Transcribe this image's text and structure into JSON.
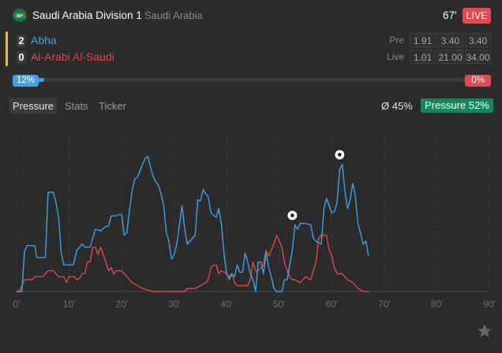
{
  "header": {
    "league": "Saudi Arabia Division 1",
    "country": "Saudi Arabia",
    "minute": "67'",
    "live_label": "LIVE"
  },
  "teams": {
    "home": {
      "name": "Abha",
      "score": "2",
      "color": "#3fa1e6"
    },
    "away": {
      "name": "Al-Arabi Al-Saudi",
      "score": "0",
      "color": "#e5484d"
    }
  },
  "odds": {
    "pre": {
      "label": "Pre",
      "values": [
        "1.91",
        "3.40",
        "3.40"
      ]
    },
    "live": {
      "label": "Live",
      "values": [
        "1.01",
        "21.00",
        "34.00"
      ]
    }
  },
  "probability": {
    "home": "12%",
    "away": "0%",
    "home_value": 0.12
  },
  "tabs": [
    "Pressure",
    "Stats",
    "Ticker"
  ],
  "summary": {
    "avg": "Ø 45%",
    "pressure": "Pressure 52%"
  },
  "chart_data": {
    "type": "line",
    "title": "Pressure",
    "x_ticks": [
      "0'",
      "10'",
      "20'",
      "30'",
      "40'",
      "50'",
      "60'",
      "70'",
      "80'",
      "90'"
    ],
    "xlim": [
      0,
      90
    ],
    "ylim": [
      0,
      100
    ],
    "series": [
      {
        "name": "Abha",
        "color": "#3fa1e6",
        "points": [
          [
            0,
            0
          ],
          [
            1,
            0
          ],
          [
            1.5,
            27
          ],
          [
            2,
            31
          ],
          [
            3.5,
            31
          ],
          [
            3.8,
            23
          ],
          [
            5.5,
            23
          ],
          [
            6,
            67
          ],
          [
            7,
            67
          ],
          [
            7.5,
            60
          ],
          [
            8,
            50
          ],
          [
            8.5,
            26
          ],
          [
            9,
            18
          ],
          [
            10,
            18
          ],
          [
            10.8,
            18
          ],
          [
            11.5,
            28
          ],
          [
            12.5,
            32
          ],
          [
            13,
            30
          ],
          [
            14,
            30
          ],
          [
            14.5,
            36
          ],
          [
            15,
            42
          ],
          [
            16,
            41
          ],
          [
            17,
            44
          ],
          [
            17.5,
            44
          ],
          [
            18,
            51
          ],
          [
            19,
            51
          ],
          [
            19.5,
            52
          ],
          [
            20,
            52
          ],
          [
            20.5,
            38
          ],
          [
            21,
            40
          ],
          [
            21.5,
            55
          ],
          [
            22,
            68
          ],
          [
            22.5,
            76
          ],
          [
            23,
            77
          ],
          [
            24,
            86
          ],
          [
            24.5,
            90
          ],
          [
            25,
            91
          ],
          [
            25.5,
            84
          ],
          [
            26,
            78
          ],
          [
            26.5,
            74
          ],
          [
            27,
            72
          ],
          [
            27.5,
            66
          ],
          [
            28,
            58
          ],
          [
            28.5,
            40
          ],
          [
            29,
            34
          ],
          [
            29.5,
            22
          ],
          [
            30,
            25
          ],
          [
            30.5,
            32
          ],
          [
            31,
            45
          ],
          [
            31.5,
            58
          ],
          [
            32,
            42
          ],
          [
            32.5,
            32
          ],
          [
            33,
            34
          ],
          [
            34,
            38
          ],
          [
            34.5,
            62
          ],
          [
            35,
            61
          ],
          [
            35.5,
            69
          ],
          [
            36,
            66
          ],
          [
            36.5,
            64
          ],
          [
            37,
            53
          ],
          [
            38,
            50
          ],
          [
            38.5,
            56
          ],
          [
            39,
            45
          ],
          [
            39.5,
            25
          ],
          [
            40,
            12
          ],
          [
            40.5,
            8
          ],
          [
            41,
            12
          ],
          [
            41.5,
            10
          ],
          [
            42,
            18
          ],
          [
            42.5,
            13
          ],
          [
            43,
            13
          ],
          [
            43.5,
            26
          ],
          [
            44,
            20
          ],
          [
            44.5,
            12
          ],
          [
            45,
            8
          ],
          [
            45.5,
            0
          ],
          [
            46,
            20
          ],
          [
            46.5,
            20
          ],
          [
            47,
            12
          ],
          [
            47.5,
            26
          ],
          [
            48,
            16
          ],
          [
            48.5,
            10
          ],
          [
            49,
            2
          ],
          [
            49.5,
            0
          ],
          [
            50,
            0
          ],
          [
            50.5,
            0
          ],
          [
            51,
            8
          ],
          [
            51.5,
            8
          ],
          [
            52,
            18
          ],
          [
            52.5,
            28
          ],
          [
            53,
            45
          ],
          [
            53.5,
            42
          ],
          [
            54,
            46
          ],
          [
            55,
            46
          ],
          [
            56,
            45
          ],
          [
            56.5,
            36
          ],
          [
            57,
            34
          ],
          [
            58,
            32
          ],
          [
            58.5,
            56
          ],
          [
            59,
            63
          ],
          [
            59.5,
            58
          ],
          [
            60,
            53
          ],
          [
            60.5,
            54
          ],
          [
            61,
            60
          ],
          [
            61.5,
            82
          ],
          [
            62,
            86
          ],
          [
            62.5,
            68
          ],
          [
            63,
            56
          ],
          [
            63.5,
            62
          ],
          [
            64,
            73
          ],
          [
            64.5,
            64
          ],
          [
            65,
            46
          ],
          [
            65.5,
            39
          ],
          [
            66,
            32
          ],
          [
            66.5,
            34
          ],
          [
            67,
            24
          ]
        ]
      },
      {
        "name": "Al-Arabi Al-Saudi",
        "color": "#e5484d",
        "points": [
          [
            0,
            0
          ],
          [
            0.5,
            0
          ],
          [
            1,
            4
          ],
          [
            1.5,
            8
          ],
          [
            3,
            8
          ],
          [
            3.5,
            10
          ],
          [
            5,
            10
          ],
          [
            6,
            14
          ],
          [
            7,
            14
          ],
          [
            7.5,
            12
          ],
          [
            8,
            10
          ],
          [
            9,
            10
          ],
          [
            9.5,
            6
          ],
          [
            10,
            10
          ],
          [
            11,
            10
          ],
          [
            11.5,
            8
          ],
          [
            12,
            9
          ],
          [
            12.5,
            12
          ],
          [
            13,
            12
          ],
          [
            13.5,
            20
          ],
          [
            14,
            20
          ],
          [
            14.5,
            30
          ],
          [
            15,
            30
          ],
          [
            15.5,
            25
          ],
          [
            16,
            30
          ],
          [
            16.5,
            25
          ],
          [
            17,
            20
          ],
          [
            17.5,
            14
          ],
          [
            18,
            16
          ],
          [
            18.5,
            12
          ],
          [
            19,
            14
          ],
          [
            20,
            14
          ],
          [
            21,
            10
          ],
          [
            22,
            6
          ],
          [
            24,
            2
          ],
          [
            26,
            0
          ],
          [
            30,
            0
          ],
          [
            32,
            0
          ],
          [
            32.5,
            2
          ],
          [
            34,
            2
          ],
          [
            35,
            4
          ],
          [
            36,
            6
          ],
          [
            36.5,
            8
          ],
          [
            37,
            16
          ],
          [
            37.5,
            18
          ],
          [
            38,
            18
          ],
          [
            38.5,
            12
          ],
          [
            39,
            14
          ],
          [
            40,
            12
          ],
          [
            40.5,
            10
          ],
          [
            41,
            12
          ],
          [
            41.5,
            6
          ],
          [
            42,
            4
          ],
          [
            43,
            4
          ],
          [
            44,
            4
          ],
          [
            44.5,
            8
          ],
          [
            45,
            20
          ],
          [
            45.5,
            14
          ],
          [
            46,
            14
          ],
          [
            46.5,
            16
          ],
          [
            47,
            18
          ],
          [
            47.5,
            28
          ],
          [
            48,
            24
          ],
          [
            48.5,
            28
          ],
          [
            49,
            32
          ],
          [
            49.5,
            38
          ],
          [
            50,
            34
          ],
          [
            50.5,
            30
          ],
          [
            51,
            20
          ],
          [
            51.5,
            14
          ],
          [
            52,
            10
          ],
          [
            52.5,
            8
          ],
          [
            53,
            8
          ],
          [
            54,
            6
          ],
          [
            55,
            10
          ],
          [
            56,
            8
          ],
          [
            57,
            20
          ],
          [
            57.5,
            36
          ],
          [
            58,
            38
          ],
          [
            59,
            38
          ],
          [
            59.5,
            28
          ],
          [
            60,
            24
          ],
          [
            60.5,
            16
          ],
          [
            61,
            12
          ],
          [
            62,
            12
          ],
          [
            63,
            8
          ],
          [
            64,
            6
          ],
          [
            65,
            2
          ],
          [
            66,
            0
          ],
          [
            67,
            0
          ]
        ]
      }
    ],
    "goal_events": [
      {
        "team": "Abha",
        "minute": 52.5,
        "value": 45
      },
      {
        "team": "Abha",
        "minute": 61.5,
        "value": 86
      }
    ]
  }
}
